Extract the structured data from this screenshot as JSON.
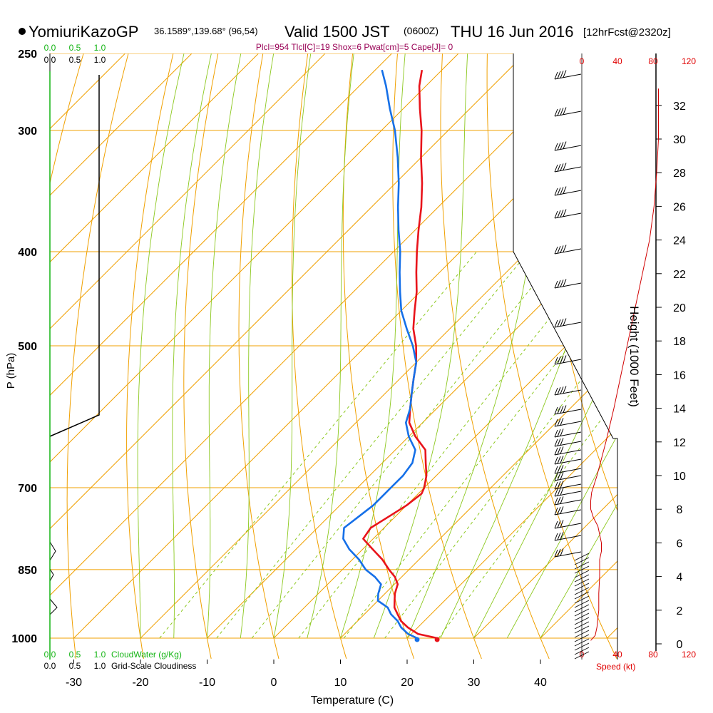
{
  "header": {
    "station": "YomiuriKazoGP",
    "location": "36.1589°,139.68° (96,54)",
    "valid": "Valid 1500 JST",
    "zulu": "(0600Z)",
    "date": "THU 16 Jun 2016",
    "forecast": "[12hrFcst@2320z]",
    "indices": "Plcl=954 Tlcl[C]=19 Shox=6 Pwat[cm]=5 Cape[J]= 0"
  },
  "colors": {
    "temperature": "#e8141b",
    "dewpoint": "#1670e8",
    "isotherm": "#f0a000",
    "dry_adiabat": "#f0a000",
    "moist_adiabat": "#8cc81e",
    "mixing_ratio": "#8cc81e",
    "cloud": "#14b414",
    "speed": "#d00000",
    "indices": "#990055",
    "frame": "#000000"
  },
  "axes": {
    "xlabel": "Temperature (C)",
    "ylabel": "P (hPa)",
    "y2label": "Height (1000 Feet)",
    "speed_label": "Speed (kt)",
    "cloudwater_label": "CloudWater (g/Kg)",
    "cloudiness_label": "Grid-Scale Cloudiness"
  },
  "chart_data": {
    "type": "line",
    "title": "YomiuriKazoGP Valid 1500 JST THU 16 Jun 2016",
    "xlabel": "Temperature (C)",
    "ylabel": "P (hPa)",
    "y_scale": "log",
    "ylim": [
      1000,
      250
    ],
    "xlim": [
      -34,
      36
    ],
    "x_ticks": [
      -30,
      -20,
      -10,
      0,
      10,
      20,
      30,
      40
    ],
    "x_tick_labels": [
      "-30",
      "-20",
      "-10",
      "0",
      "10",
      "20",
      "30",
      "40"
    ],
    "y_ticks": [
      250,
      300,
      400,
      500,
      700,
      850,
      1000
    ],
    "y_tick_labels": [
      "250",
      "300",
      "400",
      "500",
      "700",
      "850",
      "1000"
    ],
    "height_ticks": [
      0,
      2,
      4,
      6,
      8,
      10,
      12,
      14,
      16,
      18,
      20,
      22,
      24,
      26,
      28,
      30,
      32
    ],
    "height_tick_labels": [
      "0",
      "2",
      "4",
      "6",
      "8",
      "10",
      "12",
      "14",
      "16",
      "18",
      "20",
      "22",
      "24",
      "26",
      "28",
      "30",
      "32"
    ],
    "speed_ticks": [
      0,
      40,
      80,
      120
    ],
    "speed_tick_labels": [
      "0",
      "40",
      "80",
      "120"
    ],
    "cloud_ticks": [
      "0.0",
      "0.5",
      "1.0"
    ],
    "series": [
      {
        "name": "Temperature",
        "pressure": [
          1000,
          990,
          975,
          960,
          945,
          930,
          915,
          900,
          880,
          865,
          850,
          830,
          810,
          790,
          770,
          750,
          730,
          710,
          700,
          680,
          660,
          640,
          620,
          600,
          580,
          560,
          540,
          520,
          500,
          480,
          460,
          440,
          420,
          400,
          380,
          360,
          340,
          320,
          300,
          285,
          270,
          260
        ],
        "values": [
          24.5,
          21,
          18.5,
          16.5,
          15,
          13.5,
          12.5,
          11.5,
          10.5,
          9,
          7,
          4.5,
          1.5,
          -1.5,
          -2,
          -1,
          0,
          0.5,
          0,
          -1.5,
          -3.5,
          -5.5,
          -9,
          -12,
          -14,
          -16,
          -18,
          -20,
          -22.5,
          -25.5,
          -28,
          -30.5,
          -33.5,
          -36.5,
          -39.5,
          -42.5,
          -46,
          -50,
          -54,
          -57.5,
          -61,
          -63
        ]
      },
      {
        "name": "Dewpoint",
        "pressure": [
          1000,
          990,
          975,
          960,
          945,
          930,
          915,
          900,
          880,
          865,
          850,
          830,
          810,
          790,
          770,
          750,
          730,
          710,
          700,
          680,
          660,
          640,
          620,
          600,
          580,
          560,
          540,
          520,
          500,
          480,
          460,
          440,
          420,
          400,
          380,
          360,
          340,
          320,
          300,
          285,
          270,
          260
        ],
        "values": [
          21.5,
          19.5,
          17.5,
          16,
          14,
          12.5,
          10,
          9,
          8,
          6,
          3.5,
          1,
          -2,
          -4.5,
          -6,
          -5.5,
          -5,
          -5,
          -5,
          -5,
          -5.5,
          -7,
          -10,
          -12.5,
          -14,
          -16,
          -18,
          -20,
          -23,
          -26.5,
          -30,
          -33,
          -36,
          -39,
          -42.5,
          -46,
          -49.5,
          -53.5,
          -58,
          -62,
          -66,
          -69
        ]
      }
    ],
    "wind_speed": {
      "name": "Speed",
      "height_kft": [
        0.2,
        0.5,
        1,
        1.5,
        2,
        3,
        4,
        5,
        5.5,
        6,
        7,
        7.5,
        8,
        8.5,
        9,
        10,
        12,
        14,
        16,
        18,
        20,
        22,
        24,
        26,
        28,
        30,
        32,
        33
      ],
      "kt": [
        10,
        15,
        17,
        18,
        19,
        19,
        20,
        20,
        22,
        22,
        18,
        13,
        10,
        10,
        11,
        17,
        27,
        36,
        44,
        52,
        60,
        68,
        76,
        81,
        84,
        86,
        86,
        86
      ]
    }
  }
}
